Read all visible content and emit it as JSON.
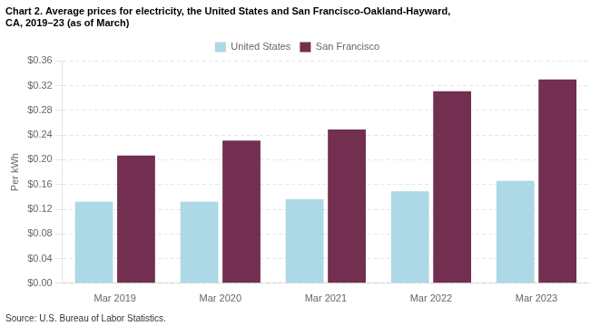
{
  "chart_data": {
    "type": "bar",
    "title": [
      "Chart 2. Average prices for electricity, the United States and San Francisco-Oakland-Hayward,",
      "CA, 2019–23 (as of March)"
    ],
    "ylabel": "Per kWh",
    "annotations": [
      "Source: U.S. Bureau of Labor Statistics."
    ],
    "categories": [
      "Mar 2019",
      "Mar 2020",
      "Mar 2021",
      "Mar 2022",
      "Mar 2023"
    ],
    "series": [
      {
        "name": "United States",
        "color": "#add8e6",
        "values": [
          0.132,
          0.132,
          0.136,
          0.149,
          0.166
        ]
      },
      {
        "name": "San Francisco",
        "color": "#722f4f",
        "values": [
          0.207,
          0.231,
          0.249,
          0.311,
          0.33
        ]
      }
    ],
    "ylim": [
      0,
      0.36
    ],
    "yticks": [
      {
        "value": 0.0,
        "label": "$0.00"
      },
      {
        "value": 0.04,
        "label": "$0.04"
      },
      {
        "value": 0.08,
        "label": "$0.08"
      },
      {
        "value": 0.12,
        "label": "$0.12"
      },
      {
        "value": 0.16,
        "label": "$0.16"
      },
      {
        "value": 0.2,
        "label": "$0.20"
      },
      {
        "value": 0.24,
        "label": "$0.24"
      },
      {
        "value": 0.28,
        "label": "$0.28"
      },
      {
        "value": 0.32,
        "label": "$0.32"
      },
      {
        "value": 0.36,
        "label": "$0.36"
      }
    ],
    "grid": true,
    "legend": "top"
  }
}
